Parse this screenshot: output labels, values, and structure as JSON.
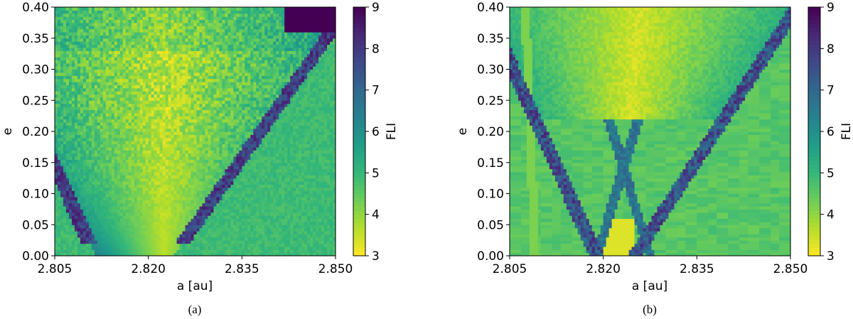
{
  "chart_data": [
    {
      "type": "heatmap",
      "caption": "(a)",
      "xlabel": "a [au]",
      "ylabel": "e",
      "xlim": [
        2.805,
        2.85
      ],
      "ylim": [
        0.0,
        0.4
      ],
      "xticks": [
        "2.805",
        "2.820",
        "2.835",
        "2.850"
      ],
      "yticks": [
        "0.00",
        "0.05",
        "0.10",
        "0.15",
        "0.20",
        "0.25",
        "0.30",
        "0.35",
        "0.40"
      ],
      "colorbar": {
        "label": "FLI",
        "range": [
          3,
          9
        ],
        "ticks": [
          "3",
          "4",
          "5",
          "6",
          "7",
          "8",
          "9"
        ],
        "colormap": "viridis (reversed)"
      },
      "features": {
        "resonance_center_a": 2.8225,
        "separatrix_left_top_a": 2.805,
        "separatrix_right_top_a": 2.85,
        "chaotic_corner": "top-right"
      }
    },
    {
      "type": "heatmap",
      "caption": "(b)",
      "xlabel": "a [au]",
      "ylabel": "e",
      "xlim": [
        2.805,
        2.85
      ],
      "ylim": [
        0.0,
        0.4
      ],
      "xticks": [
        "2.805",
        "2.820",
        "2.835",
        "2.850"
      ],
      "yticks": [
        "0.00",
        "0.05",
        "0.10",
        "0.15",
        "0.20",
        "0.25",
        "0.30",
        "0.35",
        "0.40"
      ],
      "colorbar": {
        "label": "FLI",
        "range": [
          3,
          9
        ],
        "ticks": [
          "3",
          "4",
          "5",
          "6",
          "7",
          "8",
          "9"
        ],
        "colormap": "viridis (reversed)"
      },
      "features": {
        "resonance_center_a": 2.8225,
        "separatrix_left_top_a": 2.806,
        "separatrix_right_top_a": 2.85,
        "chaotic_corner": "none"
      }
    }
  ],
  "colors": {
    "cmap_stops": [
      "#fde725",
      "#b5de2b",
      "#6ece58",
      "#35b779",
      "#1f9e89",
      "#26828e",
      "#31688e",
      "#3e4989",
      "#482878",
      "#440154"
    ]
  }
}
